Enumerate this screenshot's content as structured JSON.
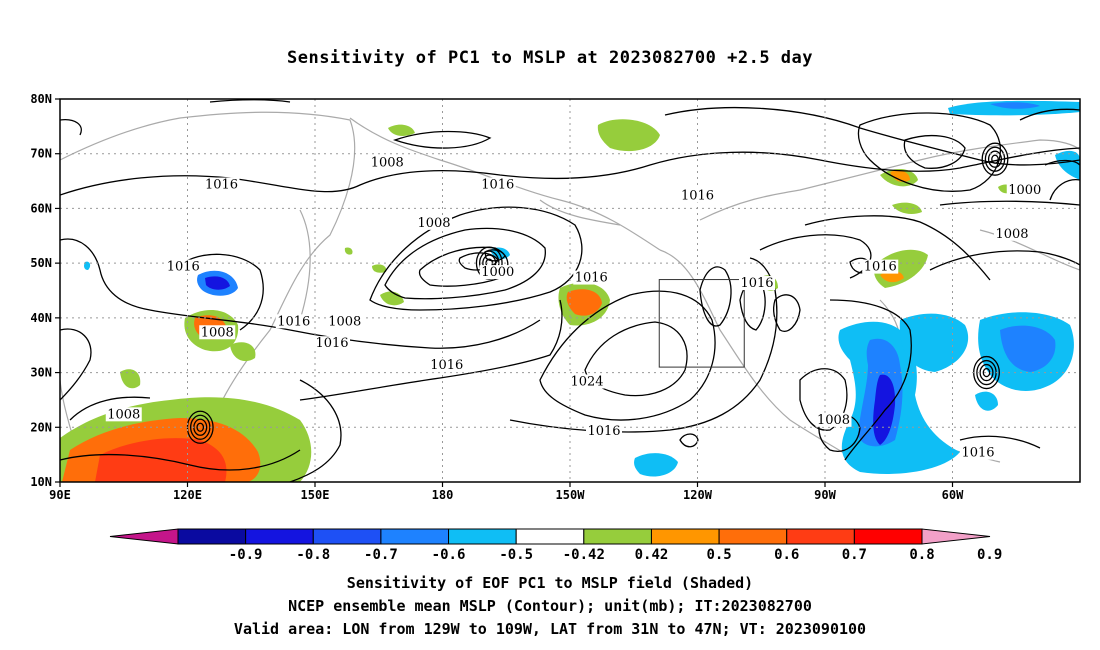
{
  "title": "Sensitivity of PC1 to MSLP at 2023082700 +2.5 day",
  "map": {
    "lon_range": [
      90,
      330
    ],
    "lat_range": [
      10,
      80
    ],
    "x_ticks": [
      {
        "lon": 90,
        "label": "90E"
      },
      {
        "lon": 120,
        "label": "120E"
      },
      {
        "lon": 150,
        "label": "150E"
      },
      {
        "lon": 180,
        "label": "180"
      },
      {
        "lon": 210,
        "label": "150W"
      },
      {
        "lon": 240,
        "label": "120W"
      },
      {
        "lon": 270,
        "label": "90W"
      },
      {
        "lon": 300,
        "label": "60W"
      }
    ],
    "y_ticks": [
      {
        "lat": 10,
        "label": "10N"
      },
      {
        "lat": 20,
        "label": "20N"
      },
      {
        "lat": 30,
        "label": "30N"
      },
      {
        "lat": 40,
        "label": "40N"
      },
      {
        "lat": 50,
        "label": "50N"
      },
      {
        "lat": 60,
        "label": "60N"
      },
      {
        "lat": 70,
        "label": "70N"
      },
      {
        "lat": 80,
        "label": "80N"
      }
    ],
    "grid": "dotted",
    "valid_box": {
      "lon_min": 231,
      "lon_max": 251,
      "lat_min": 31,
      "lat_max": 47
    },
    "contour_labels": [
      {
        "text": "1008",
        "lon": 167,
        "lat": 68
      },
      {
        "text": "1016",
        "lon": 128,
        "lat": 64
      },
      {
        "text": "1016",
        "lon": 193,
        "lat": 64
      },
      {
        "text": "1016",
        "lon": 240,
        "lat": 62
      },
      {
        "text": "1000",
        "lon": 317,
        "lat": 63
      },
      {
        "text": "1008",
        "lon": 314,
        "lat": 55
      },
      {
        "text": "1008",
        "lon": 178,
        "lat": 57
      },
      {
        "text": "1016",
        "lon": 119,
        "lat": 49
      },
      {
        "text": "1000",
        "lon": 193,
        "lat": 48
      },
      {
        "text": "1016",
        "lon": 215,
        "lat": 47
      },
      {
        "text": "1016",
        "lon": 254,
        "lat": 46
      },
      {
        "text": "1016",
        "lon": 283,
        "lat": 49
      },
      {
        "text": "1008",
        "lon": 127,
        "lat": 37
      },
      {
        "text": "1016",
        "lon": 145,
        "lat": 39
      },
      {
        "text": "1008",
        "lon": 157,
        "lat": 39
      },
      {
        "text": "1016",
        "lon": 154,
        "lat": 35
      },
      {
        "text": "1016",
        "lon": 181,
        "lat": 31
      },
      {
        "text": "1024",
        "lon": 214,
        "lat": 28
      },
      {
        "text": "1016",
        "lon": 218,
        "lat": 19
      },
      {
        "text": "1008",
        "lon": 105,
        "lat": 22
      },
      {
        "text": "1008",
        "lon": 272,
        "lat": 21
      },
      {
        "text": "1016",
        "lon": 306,
        "lat": 15
      }
    ],
    "low_centers": [
      {
        "lon": 191,
        "lat": 50
      },
      {
        "lon": 123,
        "lat": 20
      },
      {
        "lon": 308,
        "lat": 30
      },
      {
        "lon": 310,
        "lat": 69
      }
    ]
  },
  "colorbar": {
    "labels": [
      "-0.9",
      "-0.8",
      "-0.7",
      "-0.6",
      "-0.5",
      "-0.42",
      "0.42",
      "0.5",
      "0.6",
      "0.7",
      "0.8",
      "0.9"
    ],
    "below_color": "#c4158a",
    "above_color": "#f2a0c8",
    "colors": [
      "#0a0aa0",
      "#1414e0",
      "#1e50f5",
      "#1e82ff",
      "#0fbef5",
      "#ffffff",
      "#96cd3c",
      "#ff9600",
      "#ff6e0a",
      "#ff3c14",
      "#ff0000"
    ]
  },
  "caption": {
    "line1": "Sensitivity of EOF PC1 to MSLP field (Shaded)",
    "line2": "NCEP ensemble mean MSLP (Contour); unit(mb); IT:2023082700",
    "line3": "Valid area: LON from 129W to 109W, LAT from 31N to 47N; VT: 2023090100"
  }
}
